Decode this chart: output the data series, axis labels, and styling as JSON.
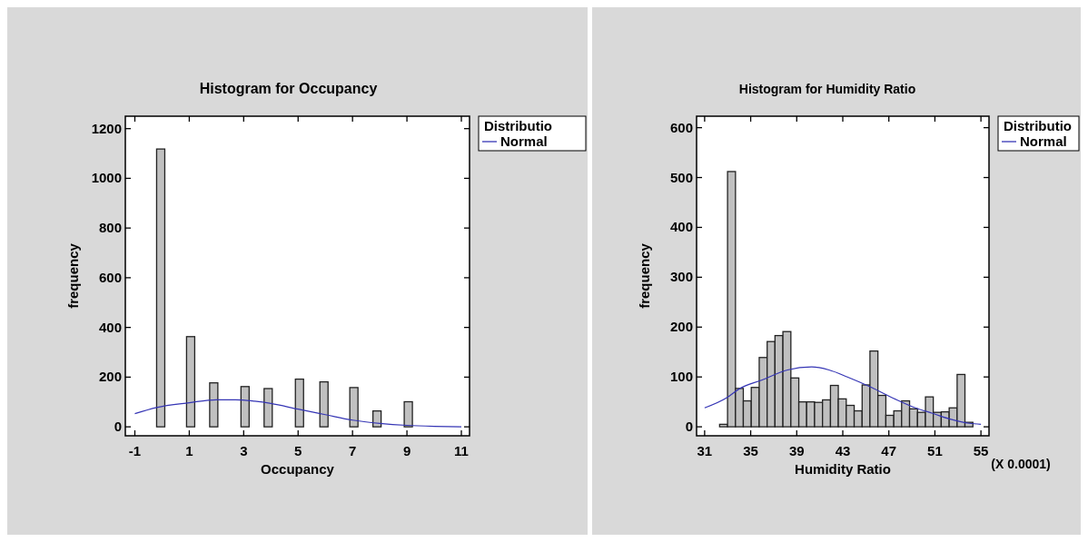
{
  "chart_data": [
    {
      "type": "histogram",
      "title": "Histogram for Occupancy",
      "xlabel": "Occupancy",
      "ylabel": "frequency",
      "legend_title": "Distributio",
      "legend": "right",
      "xlim": [
        -1.35,
        11.3
      ],
      "ylim": [
        -36,
        1250
      ],
      "xticks": [
        -1,
        1,
        3,
        5,
        7,
        9,
        11
      ],
      "yticks": [
        0,
        200,
        400,
        600,
        800,
        1000,
        1200
      ],
      "series": [
        {
          "color": "#c0c0c0",
          "bins": [
            -0.2,
            0.1,
            0.9,
            1.2,
            1.75,
            2.05,
            2.9,
            3.2,
            3.75,
            4.05,
            4.9,
            5.2,
            5.8,
            6.1,
            6.9,
            7.2,
            7.75,
            8.05,
            8.9,
            9.2
          ],
          "values": [
            1118,
            0,
            363,
            0,
            177,
            0,
            162,
            0,
            154,
            0,
            192,
            0,
            181,
            0,
            158,
            0,
            64,
            0,
            101
          ]
        },
        {
          "type": "line",
          "name": "Normal",
          "color": "#3535b5",
          "x": [
            -1,
            -0.2,
            1,
            2,
            2.7,
            3.4,
            4,
            5,
            6,
            7,
            8,
            9,
            10,
            11
          ],
          "values": [
            53,
            78,
            97,
            109,
            109,
            103,
            94,
            71,
            49,
            27,
            14,
            6,
            2,
            0
          ]
        }
      ]
    },
    {
      "type": "histogram",
      "title": "Histogram for Humidity Ratio",
      "xlabel": "Humidity Ratio",
      "ylabel": "frequency",
      "legend_title": "Distributio",
      "legend": "right",
      "annotations": [
        "(X 0.0001)"
      ],
      "xlim": [
        30.3,
        55.7
      ],
      "ylim": [
        -18,
        623
      ],
      "xticks": [
        31,
        35,
        39,
        43,
        47,
        51,
        55
      ],
      "yticks": [
        0,
        100,
        200,
        300,
        400,
        500,
        600
      ],
      "series": [
        {
          "color": "#c0c0c0",
          "bins": [
            32.3,
            32.99,
            33.68,
            34.36,
            35.05,
            35.74,
            36.43,
            37.11,
            37.8,
            38.49,
            39.18,
            39.86,
            40.55,
            41.24,
            41.93,
            42.61,
            43.3,
            43.99,
            44.68,
            45.36,
            46.05,
            46.74,
            47.43,
            48.11,
            48.8,
            49.49,
            50.18,
            50.86,
            51.55,
            52.24,
            52.93,
            53.61,
            54.3
          ],
          "values": [
            5,
            512,
            77,
            52,
            79,
            139,
            171,
            183,
            191,
            98,
            50,
            50,
            49,
            54,
            83,
            56,
            43,
            32,
            84,
            152,
            63,
            23,
            32,
            52,
            36,
            29,
            60,
            29,
            30,
            38,
            105,
            9
          ]
        },
        {
          "type": "line",
          "name": "Normal",
          "color": "#3535b5",
          "x": [
            31,
            32.9,
            34,
            36,
            38.2,
            40.3,
            41.8,
            43.4,
            45.5,
            47.6,
            49.2,
            50.8,
            52.4,
            54,
            55
          ],
          "values": [
            38,
            58,
            76,
            94,
            114,
            120,
            114,
            100,
            79,
            55,
            39,
            27,
            15,
            7,
            5
          ]
        }
      ]
    }
  ]
}
